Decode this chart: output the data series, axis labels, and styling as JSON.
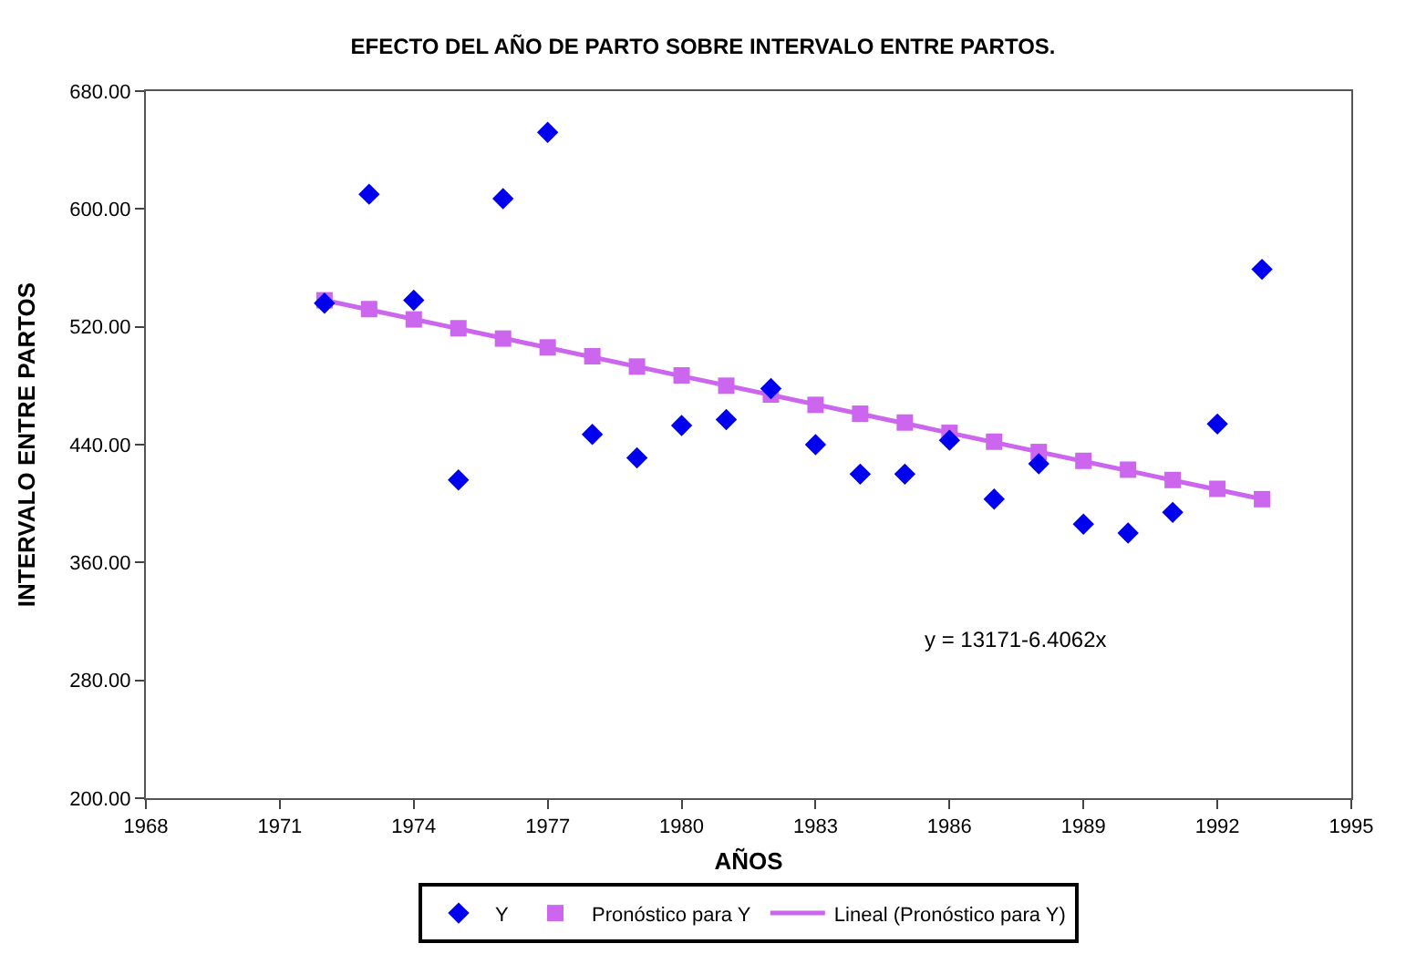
{
  "chart_data": {
    "type": "scatter",
    "title": "EFECTO DEL AÑO DE PARTO SOBRE INTERVALO ENTRE PARTOS.",
    "xlabel": "AÑOS",
    "ylabel": "INTERVALO ENTRE PARTOS",
    "x": [
      1972,
      1973,
      1974,
      1975,
      1976,
      1977,
      1978,
      1979,
      1980,
      1981,
      1982,
      1983,
      1984,
      1985,
      1986,
      1987,
      1988,
      1989,
      1990,
      1991,
      1992,
      1993
    ],
    "series": [
      {
        "name": "Y",
        "marker": "diamond",
        "color": "#0000ee",
        "values": [
          536,
          610,
          538,
          416,
          607,
          652,
          447,
          431,
          453,
          457,
          478,
          440,
          420,
          420,
          443,
          403,
          427,
          386,
          380,
          394,
          454,
          559
        ]
      },
      {
        "name": "Pronóstico para Y",
        "marker": "square",
        "color": "#cc66ee",
        "values": [
          538,
          532,
          525,
          519,
          512,
          506,
          500,
          493,
          487,
          480,
          474,
          467,
          461,
          455,
          448,
          442,
          435,
          429,
          423,
          416,
          410,
          403
        ]
      },
      {
        "name": "Lineal (Pronóstico para Y)",
        "type": "line",
        "marker": "none",
        "line_style": "solid",
        "color": "#cc66ee",
        "x": [
          1972,
          1993
        ],
        "values": [
          538,
          403
        ]
      }
    ],
    "xlim": [
      1968,
      1995
    ],
    "xticks": [
      1968,
      1971,
      1974,
      1977,
      1980,
      1983,
      1986,
      1989,
      1992,
      1995
    ],
    "ylim": [
      200,
      680
    ],
    "yticks": [
      {
        "value": 200,
        "label": "200.00"
      },
      {
        "value": 280,
        "label": "280.00"
      },
      {
        "value": 360,
        "label": "360.00"
      },
      {
        "value": 440,
        "label": "440.00"
      },
      {
        "value": 520,
        "label": "520.00"
      },
      {
        "value": 600,
        "label": "600.00"
      },
      {
        "value": 680,
        "label": "680.00"
      }
    ],
    "annotations": [
      "y = 13171-6.4062x"
    ],
    "legend": "bottom"
  }
}
